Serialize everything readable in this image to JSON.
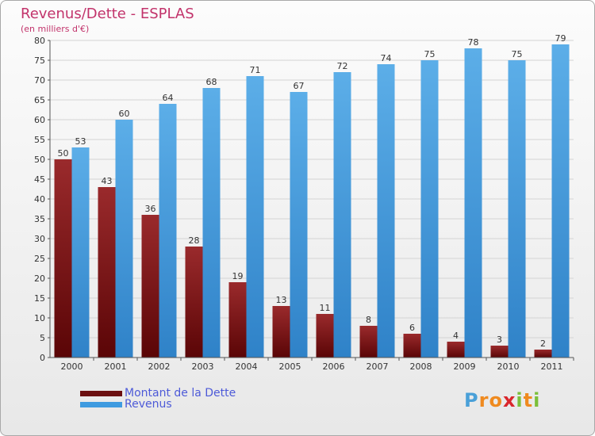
{
  "chart_data": {
    "type": "bar",
    "title": "Revenus/Dette - ESPLAS",
    "subtitle": "(en milliers d'€)",
    "categories": [
      "2000",
      "2001",
      "2002",
      "2003",
      "2004",
      "2005",
      "2006",
      "2007",
      "2008",
      "2009",
      "2010",
      "2011"
    ],
    "series": [
      {
        "name": "Montant de la Dette",
        "color": "#6b0f10",
        "values": [
          50,
          43,
          36,
          28,
          19,
          13,
          11,
          8,
          6,
          4,
          3,
          2
        ]
      },
      {
        "name": "Revenus",
        "color": "#3f9be0",
        "values": [
          53,
          60,
          64,
          68,
          71,
          67,
          72,
          74,
          75,
          78,
          75,
          79
        ]
      }
    ],
    "ylim": [
      0,
      80
    ],
    "yticks": [
      0,
      5,
      10,
      15,
      20,
      25,
      30,
      35,
      40,
      45,
      50,
      55,
      60,
      65,
      70,
      75,
      80
    ],
    "grid": true,
    "legend": "bottom-left"
  },
  "logo": {
    "letters": [
      "P",
      "r",
      "o",
      "x",
      "i",
      "t",
      "i"
    ],
    "colors": [
      "#4aa0d8",
      "#ef8a1f",
      "#ef8a1f",
      "#d9262c",
      "#7bbf3a",
      "#ef8a1f",
      "#7bbf3a"
    ]
  }
}
